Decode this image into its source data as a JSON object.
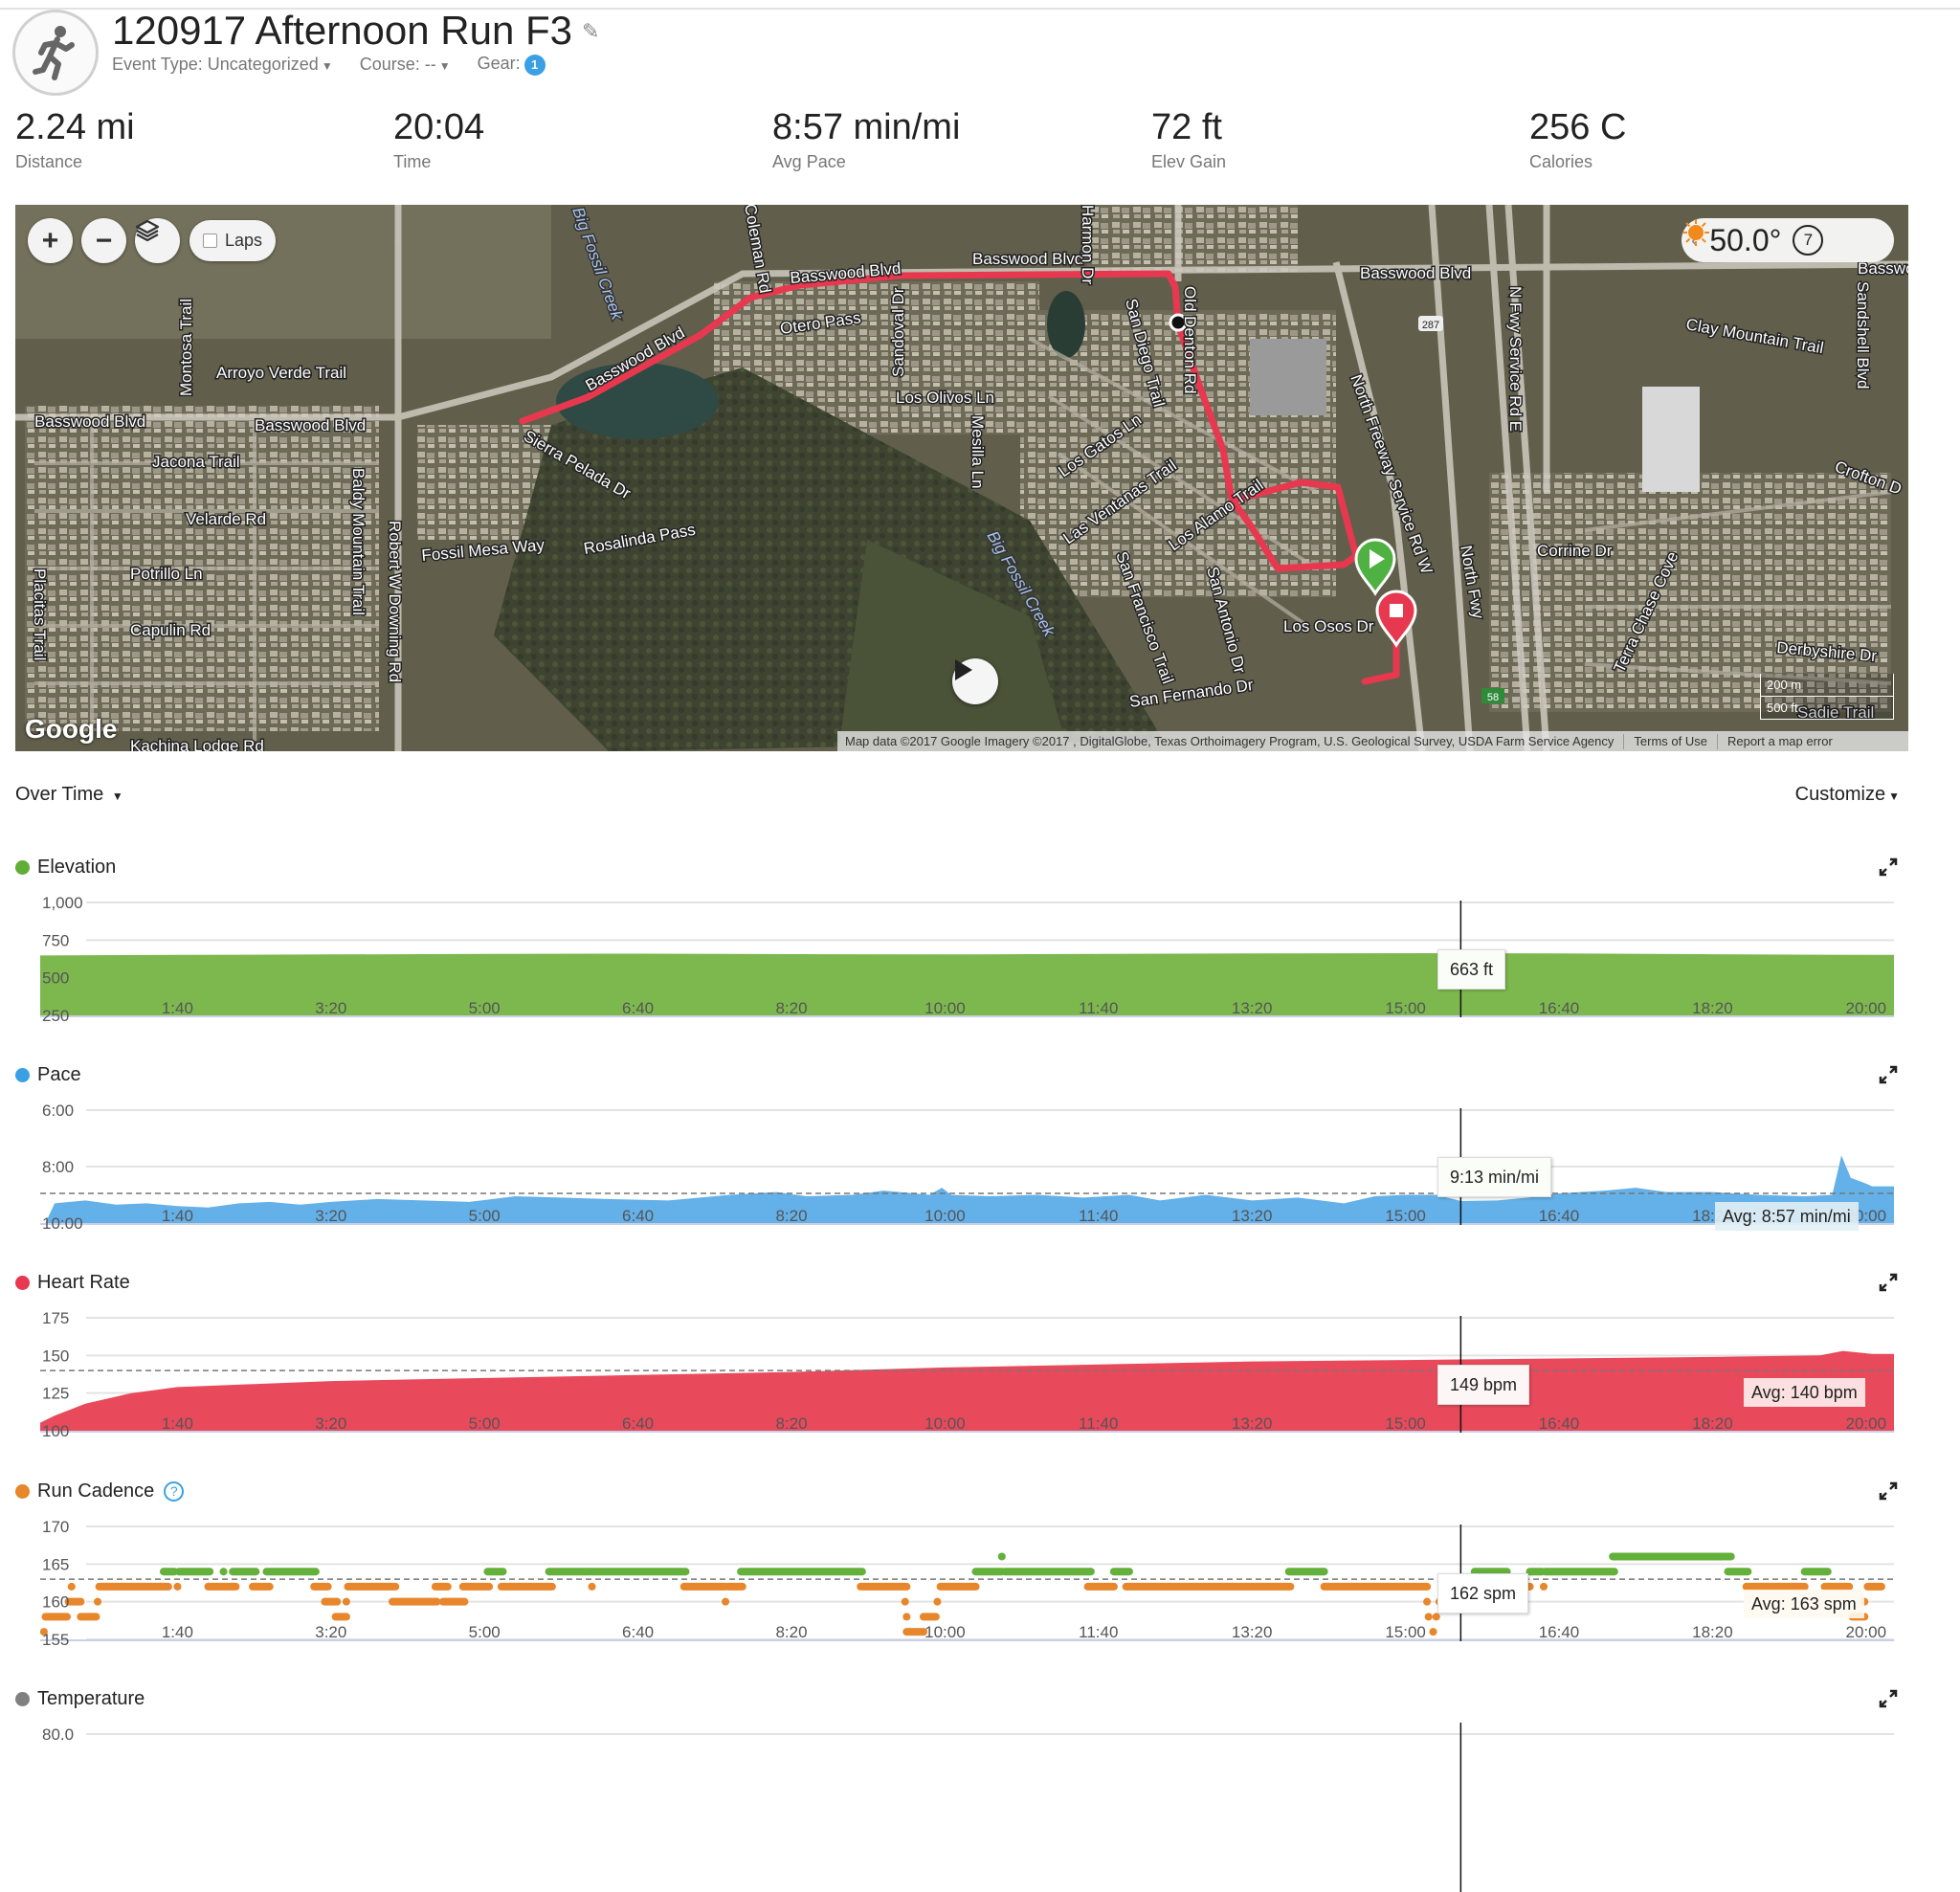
{
  "header": {
    "title": "120917 Afternoon Run F3",
    "event_type": "Event Type: Uncategorized",
    "course": "Course: --",
    "gear_label": "Gear:",
    "gear_count": "1"
  },
  "stats": [
    {
      "value": "2.24 mi",
      "label": "Distance"
    },
    {
      "value": "20:04",
      "label": "Time"
    },
    {
      "value": "8:57 min/mi",
      "label": "Avg Pace"
    },
    {
      "value": "72 ft",
      "label": "Elev Gain"
    },
    {
      "value": "256 C",
      "label": "Calories"
    }
  ],
  "map": {
    "zoom_in": "+",
    "zoom_out": "−",
    "laps_label": "Laps",
    "temperature": "50.0°",
    "weather_icon": "sun-icon",
    "replay_count": "7",
    "google": "Google",
    "attribution": "Map data ©2017 Google Imagery ©2017 , DigitalGlobe, Texas Orthoimagery Program, U.S. Geological Survey, USDA Farm Service Agency",
    "terms": "Terms of Use",
    "report": "Report a map error",
    "scale_1": "200 m",
    "scale_2": "500 ft",
    "shield_287": "287",
    "shield_58": "58",
    "route_color": "#e8384f",
    "street_labels": [
      "Basswood Blvd",
      "Basswood Blvd",
      "Basswood Blvd",
      "Basswood Blvd",
      "Basswood Blvd",
      "Basswood Blvd",
      "Basswo",
      "Arroyo Verde Trail",
      "Jacona Trail",
      "Velarde Rd",
      "Potrillo Ln",
      "Capulin Rd",
      "Fossil Mesa Way",
      "Rosalinda Pass",
      "Sierra Pelada Dr",
      "Otero Pass",
      "Los Olivos Ln",
      "Los Gatos Ln",
      "Las Ventanas Trail",
      "Los Alamo Trail",
      "Los Osos Dr",
      "San Fernando Dr",
      "Corrine Dr",
      "Clay Mountain Trail",
      "Crofton D",
      "Derbyshire Dr",
      "Sadie Trail",
      "Kachina Lodge Rd",
      "Big Fossil Creek",
      "Big Fossil Creek",
      "Montosa Trail",
      "Baldy Mountain Trail",
      "Robert W Downing Rd",
      "Placitas Trail",
      "Mesilla Ln",
      "Sandoval Dr",
      "San Diego Trail",
      "San Francisco Trail",
      "San Antonio Dr",
      "North Freeway Service Rd W",
      "North Fwy",
      "N Fwy Service Rd E",
      "Terra Chase Cove",
      "Sandshell Blvd",
      "Old Denton Rd",
      "Coleman Rd",
      "Harmon Dr"
    ]
  },
  "controls": {
    "over_time": "Over Time",
    "customize": "Customize"
  },
  "chart_data": [
    {
      "type": "area",
      "name": "Elevation",
      "unit": "ft",
      "color": "#7db84f",
      "ylim": [
        250,
        1000
      ],
      "inverted": false,
      "y_ticks": [
        {
          "v": 1000,
          "label": "1,000"
        },
        {
          "v": 750,
          "label": "750"
        },
        {
          "v": 500,
          "label": "500"
        },
        {
          "v": 250,
          "label": "250"
        }
      ],
      "x_ticks": [
        {
          "t": 100,
          "label": "1:40"
        },
        {
          "t": 200,
          "label": "3:20"
        },
        {
          "t": 300,
          "label": "5:00"
        },
        {
          "t": 400,
          "label": "6:40"
        },
        {
          "t": 500,
          "label": "8:20"
        },
        {
          "t": 600,
          "label": "10:00"
        },
        {
          "t": 700,
          "label": "11:40"
        },
        {
          "t": 800,
          "label": "13:20"
        },
        {
          "t": 900,
          "label": "15:00"
        },
        {
          "t": 1000,
          "label": "16:40"
        },
        {
          "t": 1100,
          "label": "18:20"
        },
        {
          "t": 1200,
          "label": "20:00"
        }
      ],
      "points": [
        [
          0,
          648
        ],
        [
          100,
          652
        ],
        [
          200,
          655
        ],
        [
          300,
          658
        ],
        [
          400,
          660
        ],
        [
          500,
          657
        ],
        [
          600,
          655
        ],
        [
          700,
          658
        ],
        [
          800,
          661
        ],
        [
          936,
          663
        ],
        [
          1000,
          662
        ],
        [
          1100,
          656
        ],
        [
          1204,
          652
        ]
      ],
      "cursor_t": 936,
      "tooltip": "663 ft"
    },
    {
      "type": "area",
      "name": "Pace",
      "unit": "min/mi",
      "color": "#64b0e8",
      "ylim": [
        6,
        10
      ],
      "inverted": true,
      "y_ticks": [
        {
          "v": 6,
          "label": "6:00"
        },
        {
          "v": 8,
          "label": "8:00"
        },
        {
          "v": 10,
          "label": "10:00"
        }
      ],
      "points": [
        [
          0,
          10
        ],
        [
          14,
          10
        ],
        [
          20,
          9.3
        ],
        [
          40,
          9.2
        ],
        [
          60,
          9.35
        ],
        [
          80,
          9.3
        ],
        [
          100,
          9.4
        ],
        [
          120,
          9.45
        ],
        [
          140,
          9.3
        ],
        [
          160,
          9.25
        ],
        [
          180,
          9.35
        ],
        [
          200,
          9.25
        ],
        [
          230,
          9.15
        ],
        [
          260,
          9.2
        ],
        [
          290,
          9.25
        ],
        [
          320,
          9.05
        ],
        [
          350,
          9.1
        ],
        [
          380,
          9.15
        ],
        [
          420,
          9.2
        ],
        [
          460,
          9.0
        ],
        [
          490,
          8.9
        ],
        [
          510,
          9.05
        ],
        [
          540,
          9.0
        ],
        [
          560,
          8.85
        ],
        [
          590,
          9.0
        ],
        [
          598,
          8.75
        ],
        [
          604,
          9.0
        ],
        [
          630,
          9.05
        ],
        [
          660,
          9.0
        ],
        [
          690,
          9.1
        ],
        [
          720,
          9.0
        ],
        [
          740,
          9.2
        ],
        [
          770,
          9.0
        ],
        [
          800,
          9.2
        ],
        [
          830,
          9.1
        ],
        [
          860,
          9.3
        ],
        [
          880,
          9.05
        ],
        [
          900,
          9.0
        ],
        [
          920,
          9.0
        ],
        [
          936,
          9.22
        ],
        [
          960,
          9.2
        ],
        [
          980,
          9.1
        ],
        [
          1000,
          8.95
        ],
        [
          1030,
          8.85
        ],
        [
          1050,
          8.75
        ],
        [
          1070,
          8.9
        ],
        [
          1100,
          8.9
        ],
        [
          1130,
          9.0
        ],
        [
          1160,
          9.05
        ],
        [
          1178,
          9.0
        ],
        [
          1184,
          7.6
        ],
        [
          1190,
          8.4
        ],
        [
          1200,
          8.6
        ],
        [
          1204,
          8.7
        ]
      ],
      "average": 8.95,
      "average_label": "Avg: 8:57 min/mi",
      "cursor_t": 936,
      "tooltip": "9:13 min/mi"
    },
    {
      "type": "area",
      "name": "Heart Rate",
      "unit": "bpm",
      "color": "#e84a5c",
      "ylim": [
        100,
        175
      ],
      "inverted": false,
      "y_ticks": [
        {
          "v": 175,
          "label": "175"
        },
        {
          "v": 150,
          "label": "150"
        },
        {
          "v": 125,
          "label": "125"
        },
        {
          "v": 100,
          "label": "100"
        }
      ],
      "points": [
        [
          0,
          100
        ],
        [
          20,
          110
        ],
        [
          40,
          118
        ],
        [
          70,
          125
        ],
        [
          100,
          129
        ],
        [
          150,
          131
        ],
        [
          200,
          133
        ],
        [
          300,
          135
        ],
        [
          400,
          137
        ],
        [
          500,
          139
        ],
        [
          600,
          142
        ],
        [
          700,
          144
        ],
        [
          800,
          146
        ],
        [
          900,
          147
        ],
        [
          1000,
          148
        ],
        [
          1100,
          149
        ],
        [
          1170,
          150
        ],
        [
          1185,
          153
        ],
        [
          1204,
          151
        ]
      ],
      "average": 140,
      "average_label": "Avg: 140 bpm",
      "cursor_t": 936,
      "tooltip": "149 bpm"
    },
    {
      "type": "scatter",
      "name": "Run Cadence",
      "unit": "spm",
      "color": "#e8862b",
      "color_high": "#63b03a",
      "ylim": [
        155,
        170
      ],
      "inverted": false,
      "y_ticks": [
        {
          "v": 170,
          "label": "170"
        },
        {
          "v": 165,
          "label": "165"
        },
        {
          "v": 160,
          "label": "160"
        },
        {
          "v": 155,
          "label": "155"
        }
      ],
      "segments": [
        [
          91,
          98,
          164
        ],
        [
          101,
          121,
          164
        ],
        [
          130,
          130,
          164
        ],
        [
          136,
          151,
          164
        ],
        [
          158,
          190,
          164
        ],
        [
          302,
          312,
          164
        ],
        [
          342,
          369,
          164
        ],
        [
          370,
          431,
          164
        ],
        [
          467,
          546,
          164
        ],
        [
          620,
          637,
          164
        ],
        [
          639,
          695,
          164
        ],
        [
          710,
          720,
          164
        ],
        [
          824,
          847,
          164
        ],
        [
          945,
          966,
          164
        ],
        [
          981,
          989,
          164
        ],
        [
          991,
          1036,
          164
        ],
        [
          1110,
          1123,
          164
        ],
        [
          1160,
          1175,
          164
        ],
        [
          1035,
          1112,
          166
        ],
        [
          637,
          637,
          166
        ],
        [
          31,
          31,
          162
        ],
        [
          49,
          94,
          162
        ],
        [
          100,
          100,
          162
        ],
        [
          120,
          138,
          162
        ],
        [
          149,
          160,
          162
        ],
        [
          189,
          198,
          162
        ],
        [
          211,
          242,
          162
        ],
        [
          268,
          276,
          162
        ],
        [
          286,
          303,
          162
        ],
        [
          311,
          344,
          162
        ],
        [
          370,
          370,
          162
        ],
        [
          430,
          457,
          162
        ],
        [
          459,
          468,
          162
        ],
        [
          545,
          575,
          162
        ],
        [
          597,
          620,
          162
        ],
        [
          693,
          710,
          162
        ],
        [
          718,
          825,
          162
        ],
        [
          847,
          914,
          162
        ],
        [
          930,
          940,
          162
        ],
        [
          966,
          981,
          162
        ],
        [
          990,
          990,
          162
        ],
        [
          1122,
          1160,
          162
        ],
        [
          1173,
          1189,
          162
        ],
        [
          1201,
          1210,
          162
        ],
        [
          29,
          37,
          160
        ],
        [
          48,
          48,
          160
        ],
        [
          196,
          204,
          160
        ],
        [
          210,
          210,
          160
        ],
        [
          240,
          269,
          160
        ],
        [
          273,
          287,
          160
        ],
        [
          457,
          457,
          160
        ],
        [
          574,
          574,
          160
        ],
        [
          595,
          595,
          160
        ],
        [
          914,
          914,
          160
        ],
        [
          922,
          922,
          160
        ],
        [
          1199,
          1199,
          160
        ],
        [
          14,
          28,
          158
        ],
        [
          37,
          47,
          158
        ],
        [
          203,
          210,
          158
        ],
        [
          575,
          575,
          158
        ],
        [
          586,
          594,
          158
        ],
        [
          915,
          915,
          158
        ],
        [
          920,
          920,
          158
        ],
        [
          1191,
          1199,
          158
        ],
        [
          13,
          13,
          156
        ],
        [
          575,
          586,
          156
        ],
        [
          918,
          918,
          156
        ]
      ],
      "average": 163,
      "average_label": "Avg: 163 spm",
      "cursor_t": 936,
      "tooltip": "162 spm"
    },
    {
      "type": "line",
      "name": "Temperature",
      "color": "#808080",
      "y_ticks": [
        {
          "v": 80,
          "label": "80.0"
        }
      ],
      "cursor_t": 936
    }
  ]
}
